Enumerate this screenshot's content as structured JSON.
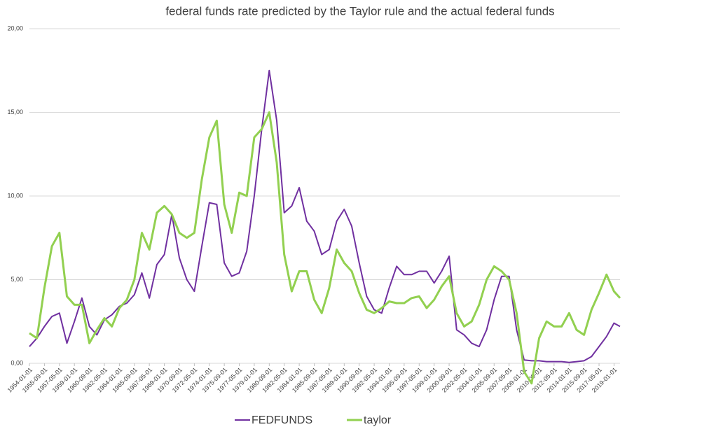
{
  "chart_data": {
    "type": "line",
    "title": "federal funds rate predicted by the Taylor rule and the actual federal funds",
    "x": [
      "1954-01-01",
      "1954-11-01",
      "1955-09-01",
      "1956-07-01",
      "1957-05-01",
      "1958-03-01",
      "1959-01-01",
      "1959-11-01",
      "1960-09-01",
      "1961-07-01",
      "1962-05-01",
      "1963-03-01",
      "1964-01-01",
      "1964-11-01",
      "1965-09-01",
      "1966-07-01",
      "1967-05-01",
      "1968-03-01",
      "1969-01-01",
      "1969-11-01",
      "1970-09-01",
      "1971-07-01",
      "1972-05-01",
      "1973-03-01",
      "1974-01-01",
      "1974-11-01",
      "1975-09-01",
      "1976-07-01",
      "1977-05-01",
      "1978-03-01",
      "1979-01-01",
      "1979-11-01",
      "1980-09-01",
      "1981-07-01",
      "1982-05-01",
      "1983-03-01",
      "1984-01-01",
      "1984-11-01",
      "1985-09-01",
      "1986-07-01",
      "1987-05-01",
      "1988-03-01",
      "1989-01-01",
      "1989-11-01",
      "1990-09-01",
      "1991-07-01",
      "1992-05-01",
      "1993-03-01",
      "1994-01-01",
      "1994-11-01",
      "1995-09-01",
      "1996-07-01",
      "1997-05-01",
      "1998-03-01",
      "1999-01-01",
      "1999-11-01",
      "2000-09-01",
      "2001-07-01",
      "2002-05-01",
      "2003-03-01",
      "2004-01-01",
      "2004-11-01",
      "2005-09-01",
      "2006-07-01",
      "2007-05-01",
      "2008-03-01",
      "2009-01-01",
      "2009-11-01",
      "2010-09-01",
      "2011-07-01",
      "2012-05-01",
      "2013-03-01",
      "2014-01-01",
      "2014-11-01",
      "2015-09-01",
      "2016-07-01",
      "2017-05-01",
      "2018-03-01",
      "2019-01-01",
      "2019-09-01"
    ],
    "series": [
      {
        "name": "FEDFUNDS",
        "color": "#7030a0",
        "values": [
          1.0,
          1.5,
          2.2,
          2.8,
          3.0,
          1.2,
          2.5,
          3.9,
          2.2,
          1.7,
          2.6,
          2.9,
          3.4,
          3.6,
          4.1,
          5.4,
          3.9,
          5.9,
          6.5,
          8.9,
          6.3,
          5.0,
          4.3,
          7.0,
          9.6,
          9.5,
          6.0,
          5.2,
          5.4,
          6.7,
          10.0,
          14.0,
          17.5,
          14.5,
          9.0,
          9.4,
          10.5,
          8.5,
          7.9,
          6.5,
          6.8,
          8.5,
          9.2,
          8.2,
          6.0,
          4.0,
          3.2,
          3.0,
          4.5,
          5.8,
          5.3,
          5.3,
          5.5,
          5.5,
          4.8,
          5.5,
          6.4,
          2.0,
          1.7,
          1.2,
          1.0,
          2.0,
          3.8,
          5.2,
          5.2,
          2.0,
          0.2,
          0.15,
          0.15,
          0.1,
          0.1,
          0.1,
          0.05,
          0.1,
          0.15,
          0.4,
          1.0,
          1.6,
          2.4,
          2.2
        ]
      },
      {
        "name": "taylor",
        "color": "#92d050",
        "values": [
          1.8,
          1.5,
          4.5,
          7.0,
          7.8,
          4.0,
          3.5,
          3.5,
          1.2,
          2.0,
          2.7,
          2.2,
          3.3,
          3.8,
          5.0,
          7.8,
          6.8,
          9.0,
          9.4,
          8.9,
          7.8,
          7.5,
          7.8,
          11.0,
          13.5,
          14.5,
          9.5,
          7.8,
          10.2,
          10.0,
          13.5,
          14.0,
          15.0,
          12.0,
          6.5,
          4.3,
          5.5,
          5.5,
          3.8,
          3.0,
          4.5,
          6.8,
          6.0,
          5.5,
          4.2,
          3.2,
          3.0,
          3.3,
          3.7,
          3.6,
          3.6,
          3.9,
          4.0,
          3.3,
          3.8,
          4.6,
          5.2,
          3.0,
          2.2,
          2.5,
          3.5,
          5.0,
          5.8,
          5.5,
          5.0,
          3.0,
          -0.5,
          -1.2,
          1.5,
          2.5,
          2.2,
          2.2,
          3.0,
          2.0,
          1.7,
          3.2,
          4.2,
          5.3,
          4.3,
          3.9
        ]
      }
    ],
    "xlim": [
      "1954-01-01",
      "2019-09-01"
    ],
    "xticks": [
      "1954-01-01",
      "1955-09-01",
      "1957-05-01",
      "1959-01-01",
      "1960-09-01",
      "1962-05-01",
      "1964-01-01",
      "1965-09-01",
      "1967-05-01",
      "1969-01-01",
      "1970-09-01",
      "1972-05-01",
      "1974-01-01",
      "1975-09-01",
      "1977-05-01",
      "1979-01-01",
      "1980-09-01",
      "1982-05-01",
      "1984-01-01",
      "1985-09-01",
      "1987-05-01",
      "1989-01-01",
      "1990-09-01",
      "1992-05-01",
      "1994-01-01",
      "1995-09-01",
      "1997-05-01",
      "1999-01-01",
      "2000-09-01",
      "2002-05-01",
      "2004-01-01",
      "2005-09-01",
      "2007-05-01",
      "2009-01-01",
      "2010-09-01",
      "2012-05-01",
      "2014-01-01",
      "2015-09-01",
      "2017-05-01",
      "2019-01-01"
    ],
    "ylim": [
      0,
      20
    ],
    "yticks": [
      {
        "value": 0,
        "label": "0,00"
      },
      {
        "value": 5,
        "label": "5,00"
      },
      {
        "value": 10,
        "label": "10,00"
      },
      {
        "value": 15,
        "label": "15,00"
      },
      {
        "value": 20,
        "label": "20,00"
      }
    ],
    "grid": true,
    "legend": "bottom"
  }
}
